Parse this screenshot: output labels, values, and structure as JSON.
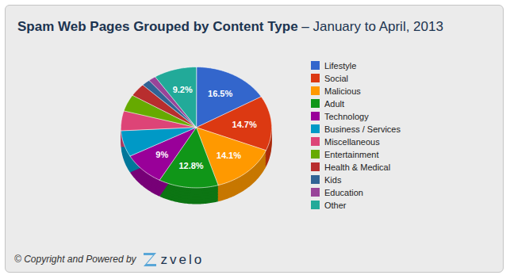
{
  "chart_data": {
    "type": "pie",
    "title": "Spam Web Pages Grouped by Content Type",
    "subtitle": "– January to April, 2013",
    "categories": [
      "Lifestyle",
      "Social",
      "Malicious",
      "Adult",
      "Technology",
      "Business / Services",
      "Miscellaneous",
      "Entertainment",
      "Health & Medical",
      "Kids",
      "Education",
      "Other"
    ],
    "values": [
      16.5,
      14.7,
      14.1,
      12.8,
      9,
      7,
      5.3,
      4.5,
      3.5,
      1.8,
      1.6,
      9.2
    ],
    "value_labels": [
      "16.5%",
      "14.7%",
      "14.1%",
      "12.8%",
      "9%",
      null,
      null,
      null,
      null,
      null,
      null,
      "9.2%"
    ],
    "colors": [
      "#3366cc",
      "#dc3912",
      "#ff9900",
      "#109618",
      "#990099",
      "#0099c6",
      "#dd4477",
      "#66aa00",
      "#b82e2e",
      "#316395",
      "#994499",
      "#22aa99"
    ],
    "data_labels": true,
    "legend": "right",
    "tick_labels": false,
    "annotations": [
      "© Copyright and Powered by",
      "zvelo"
    ]
  }
}
